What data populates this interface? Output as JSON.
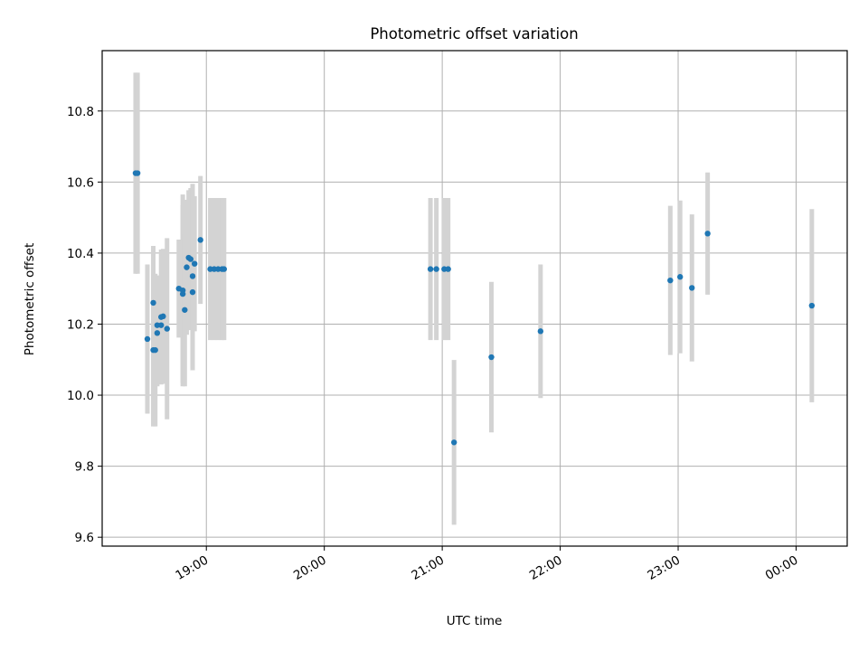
{
  "chart_data": {
    "type": "scatter",
    "title": "Photometric offset variation",
    "xlabel": "UTC time",
    "ylabel": "Photometric offset",
    "grid": true,
    "x_ticks": [
      "19:00",
      "20:00",
      "21:00",
      "22:00",
      "23:00",
      "00:00"
    ],
    "y_ticks": [
      "9.6",
      "9.8",
      "10.0",
      "10.2",
      "10.4",
      "10.6",
      "10.8"
    ],
    "x_range": [
      "18:07",
      "00:26"
    ],
    "ylim": [
      9.575,
      10.97
    ],
    "colors": {
      "point": "#1f77b4",
      "errorbar": "#d3d3d3",
      "grid": "#b0b0b0"
    },
    "series": [
      {
        "points": [
          {
            "x": "18:24",
            "y": 10.625,
            "yerr": 0.283
          },
          {
            "x": "18:25",
            "y": 10.625,
            "yerr": 0.283
          },
          {
            "x": "18:30",
            "y": 10.158,
            "yerr": 0.21
          },
          {
            "x": "18:33",
            "y": 10.127,
            "yerr": 0.215
          },
          {
            "x": "18:33",
            "y": 10.26,
            "yerr": 0.16
          },
          {
            "x": "18:34",
            "y": 10.127,
            "yerr": 0.215
          },
          {
            "x": "18:35",
            "y": 10.175,
            "yerr": 0.15
          },
          {
            "x": "18:35",
            "y": 10.197,
            "yerr": 0.14
          },
          {
            "x": "18:37",
            "y": 10.197,
            "yerr": 0.14
          },
          {
            "x": "18:37",
            "y": 10.22,
            "yerr": 0.19
          },
          {
            "x": "18:38",
            "y": 10.222,
            "yerr": 0.19
          },
          {
            "x": "18:40",
            "y": 10.187,
            "yerr": 0.255
          },
          {
            "x": "18:46",
            "y": 10.3,
            "yerr": 0.138
          },
          {
            "x": "18:48",
            "y": 10.285,
            "yerr": 0.25
          },
          {
            "x": "18:48",
            "y": 10.295,
            "yerr": 0.27
          },
          {
            "x": "18:49",
            "y": 10.24,
            "yerr": 0.215
          },
          {
            "x": "18:50",
            "y": 10.36,
            "yerr": 0.19
          },
          {
            "x": "18:51",
            "y": 10.387,
            "yerr": 0.19
          },
          {
            "x": "18:52",
            "y": 10.383,
            "yerr": 0.2
          },
          {
            "x": "18:53",
            "y": 10.335,
            "yerr": 0.26
          },
          {
            "x": "18:53",
            "y": 10.29,
            "yerr": 0.22
          },
          {
            "x": "18:54",
            "y": 10.37,
            "yerr": 0.19
          },
          {
            "x": "18:57",
            "y": 10.437,
            "yerr": 0.18
          },
          {
            "x": "19:02",
            "y": 10.355,
            "yerr": 0.2
          },
          {
            "x": "19:04",
            "y": 10.355,
            "yerr": 0.2
          },
          {
            "x": "19:06",
            "y": 10.355,
            "yerr": 0.2
          },
          {
            "x": "19:08",
            "y": 10.355,
            "yerr": 0.2
          },
          {
            "x": "19:09",
            "y": 10.355,
            "yerr": 0.2
          },
          {
            "x": "20:54",
            "y": 10.355,
            "yerr": 0.2
          },
          {
            "x": "20:57",
            "y": 10.355,
            "yerr": 0.2
          },
          {
            "x": "21:01",
            "y": 10.355,
            "yerr": 0.2
          },
          {
            "x": "21:03",
            "y": 10.355,
            "yerr": 0.2
          },
          {
            "x": "21:06",
            "y": 9.867,
            "yerr": 0.232
          },
          {
            "x": "21:25",
            "y": 10.107,
            "yerr": 0.212
          },
          {
            "x": "21:50",
            "y": 10.18,
            "yerr": 0.188
          },
          {
            "x": "22:56",
            "y": 10.323,
            "yerr": 0.21
          },
          {
            "x": "23:01",
            "y": 10.333,
            "yerr": 0.215
          },
          {
            "x": "23:07",
            "y": 10.302,
            "yerr": 0.207
          },
          {
            "x": "23:15",
            "y": 10.455,
            "yerr": 0.172
          },
          {
            "x": "00:08",
            "y": 10.252,
            "yerr": 0.272
          }
        ]
      }
    ]
  }
}
